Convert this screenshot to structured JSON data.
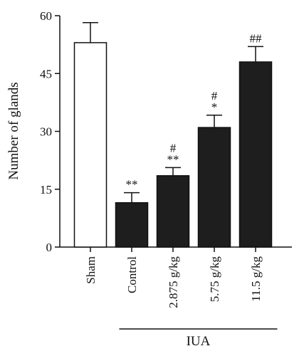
{
  "chart_data": {
    "type": "bar",
    "title": "",
    "xlabel": "",
    "ylabel": "Number of glands",
    "ylim": [
      0,
      60
    ],
    "yticks": [
      "0",
      "15",
      "30",
      "45",
      "60"
    ],
    "grid": false,
    "categories": [
      "Sham",
      "Control",
      "2.875 g/kg",
      "5.75 g/kg",
      "11.5 g/kg"
    ],
    "values": [
      53,
      11.5,
      18.5,
      31,
      48
    ],
    "error": [
      5.2,
      2.6,
      2.1,
      3.2,
      4
    ],
    "bar_colors": [
      "#ffffff",
      "#1e1e1e",
      "#1e1e1e",
      "#1e1e1e",
      "#1e1e1e"
    ],
    "significance": [
      {
        "category": "Control",
        "marks": [
          "**"
        ]
      },
      {
        "category": "2.875 g/kg",
        "marks": [
          "#",
          "**"
        ]
      },
      {
        "category": "5.75 g/kg",
        "marks": [
          "#",
          "*"
        ]
      },
      {
        "category": "11.5 g/kg",
        "marks": [
          "##"
        ]
      }
    ],
    "group_bracket": {
      "label": "IUA",
      "categories": [
        "Control",
        "2.875 g/kg",
        "5.75 g/kg",
        "11.5 g/kg"
      ]
    }
  }
}
